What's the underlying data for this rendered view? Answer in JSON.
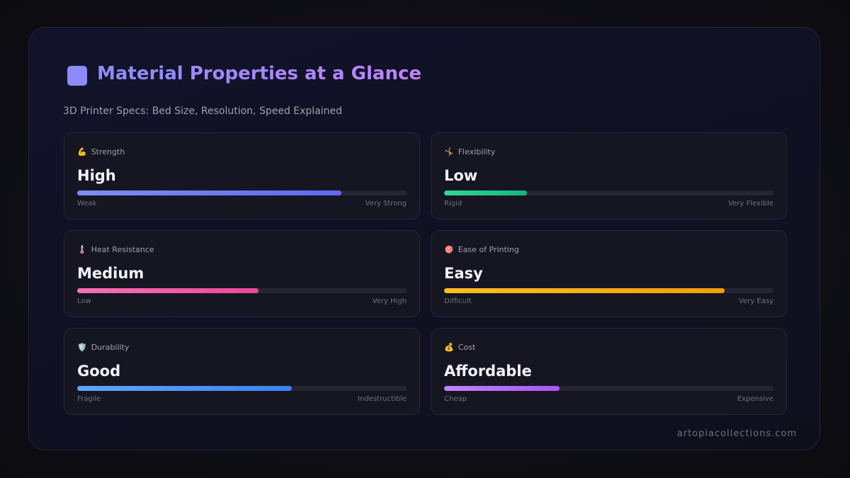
{
  "header": {
    "title": "Material Properties at a Glance",
    "subtitle": "3D Printer Specs: Bed Size, Resolution, Speed Explained"
  },
  "cards": [
    {
      "icon": "💪",
      "label": "Strength",
      "rating": "High",
      "level": 80,
      "min_label": "Weak",
      "max_label": "Very Strong",
      "colors": [
        "#818cf8",
        "#6366f1"
      ]
    },
    {
      "icon": "🤸",
      "label": "Flexibility",
      "rating": "Low",
      "level": 25,
      "min_label": "Rigid",
      "max_label": "Very Flexible",
      "colors": [
        "#34d399",
        "#10b981"
      ]
    },
    {
      "icon": "🌡️",
      "label": "Heat Resistance",
      "rating": "Medium",
      "level": 55,
      "min_label": "Low",
      "max_label": "Very High",
      "colors": [
        "#f472b6",
        "#ec4899"
      ]
    },
    {
      "icon": "🎯",
      "label": "Ease of Printing",
      "rating": "Easy",
      "level": 85,
      "min_label": "Difficult",
      "max_label": "Very Easy",
      "colors": [
        "#fbbf24",
        "#f59e0b"
      ]
    },
    {
      "icon": "🛡️",
      "label": "Durability",
      "rating": "Good",
      "level": 65,
      "min_label": "Fragile",
      "max_label": "Indestructible",
      "colors": [
        "#60a5fa",
        "#3b82f6"
      ]
    },
    {
      "icon": "💰",
      "label": "Cost",
      "rating": "Affordable",
      "level": 35,
      "min_label": "Cheap",
      "max_label": "Expensive",
      "colors": [
        "#c084fc",
        "#a855f7"
      ]
    }
  ],
  "footer": {
    "credit": "artopiacollections.com"
  }
}
